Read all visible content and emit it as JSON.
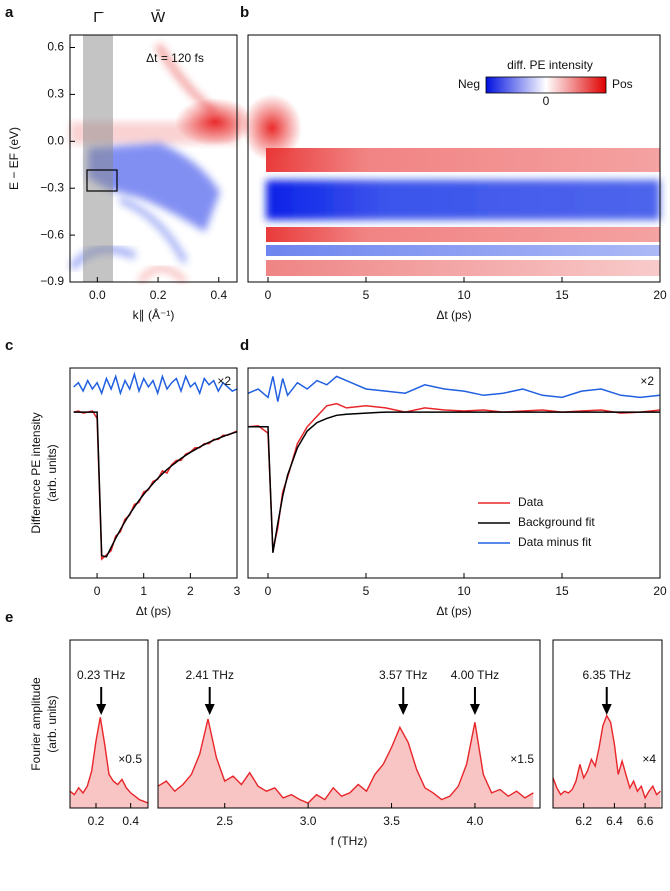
{
  "chart_data": [
    {
      "type": "heatmap",
      "panel": "a",
      "xlabel": "k∥ (Å⁻¹)",
      "ylabel": "E − EF (eV)",
      "xlim": [
        -0.09,
        0.46
      ],
      "ylim": [
        -0.9,
        0.68
      ],
      "xticks": [
        {
          "value": 0,
          "label": "0.0"
        },
        0.2,
        0.4
      ],
      "yticks": [
        {
          "value": -0.9,
          "label": "−0.9"
        },
        {
          "value": -0.6,
          "label": "−0.6"
        },
        {
          "value": -0.3,
          "label": "−0.3"
        },
        {
          "value": 0,
          "label": "0.0"
        },
        0.3,
        0.6
      ],
      "markers": [
        {
          "x": 0,
          "label": "Γ̄"
        },
        {
          "x": 0.2,
          "label": "W̄"
        }
      ],
      "annotation": "Δt = 120 fs"
    },
    {
      "type": "heatmap",
      "panel": "b",
      "xlabel": "Δt (ps)",
      "xlim": [
        -1.02,
        20
      ],
      "xticks": [
        0,
        5,
        10,
        15,
        20
      ],
      "colorbar": {
        "title": "diff. PE intensity",
        "low": "Neg",
        "high": "Pos",
        "center": 0
      }
    },
    {
      "type": "line",
      "panel": "c",
      "xlabel": "Δt (ps)",
      "ylabel": [
        "Difference PE intensity",
        "(arb. units)"
      ],
      "xlim": [
        -0.58,
        3
      ],
      "ylim": [
        0,
        10
      ],
      "xticks": [
        0,
        1,
        2,
        3
      ],
      "scale_label": "×2",
      "x": [
        -0.5,
        -0.4,
        -0.3,
        -0.2,
        -0.1,
        0,
        0.1,
        0.2,
        0.3,
        0.4,
        0.5,
        0.6,
        0.7,
        0.8,
        0.9,
        1.0,
        1.1,
        1.2,
        1.3,
        1.4,
        1.5,
        1.6,
        1.7,
        1.8,
        1.9,
        2.0,
        2.1,
        2.2,
        2.3,
        2.4,
        2.5,
        2.6,
        2.7,
        2.8,
        2.9,
        3.0
      ],
      "series": [
        {
          "color": "#e8262a",
          "values": [
            7.9,
            7.95,
            7.85,
            7.9,
            7.95,
            7.6,
            0.9,
            1.1,
            1.3,
            2.0,
            2.2,
            2.8,
            3.0,
            3.5,
            3.6,
            4.1,
            4.2,
            4.6,
            4.7,
            5.1,
            5.0,
            5.4,
            5.6,
            5.6,
            5.9,
            6.0,
            6.2,
            6.2,
            6.4,
            6.4,
            6.6,
            6.6,
            6.8,
            6.8,
            6.9,
            7.0
          ]
        },
        {
          "color": "#000000",
          "values": [
            7.9,
            7.9,
            7.9,
            7.9,
            7.9,
            7.9,
            1.06,
            1.01,
            1.45,
            1.89,
            2.3,
            2.69,
            3.05,
            3.38,
            3.69,
            3.98,
            4.25,
            4.5,
            4.74,
            4.96,
            5.16,
            5.35,
            5.52,
            5.69,
            5.84,
            5.98,
            6.11,
            6.24,
            6.35,
            6.46,
            6.56,
            6.65,
            6.74,
            6.82,
            6.89,
            6.96
          ]
        },
        {
          "color": "#2060e0",
          "values": [
            9.1,
            9.3,
            8.9,
            9.4,
            9.0,
            9.3,
            8.8,
            9.5,
            9.0,
            9.6,
            8.8,
            9.4,
            9.0,
            9.7,
            8.9,
            9.5,
            9.1,
            9.4,
            8.8,
            9.6,
            9.0,
            9.3,
            9.5,
            8.9,
            9.6,
            9.1,
            9.3,
            8.8,
            9.5,
            9.2,
            9.4,
            8.9,
            9.3,
            9.1,
            8.9,
            9.0
          ]
        }
      ]
    },
    {
      "type": "line",
      "panel": "d",
      "xlabel": "Δt (ps)",
      "xlim": [
        -1.02,
        20
      ],
      "ylim": [
        0,
        10
      ],
      "xticks": [
        0,
        5,
        10,
        15,
        20
      ],
      "scale_label": "×2",
      "legend": "lower right",
      "x": [
        -1,
        -0.5,
        0,
        0.25,
        0.5,
        0.75,
        1,
        1.5,
        2,
        2.5,
        3,
        3.5,
        4,
        5,
        6,
        7,
        8,
        9,
        10,
        11,
        12,
        13,
        14,
        15,
        16,
        17,
        18,
        19,
        20
      ],
      "series": [
        {
          "name": "Data",
          "color": "#e8262a",
          "values": [
            7.2,
            7.25,
            6.9,
            1.3,
            2.4,
            4.1,
            4.8,
            6.4,
            7.2,
            7.7,
            8.2,
            8.3,
            8.1,
            8.2,
            8.1,
            7.9,
            8.1,
            8.0,
            7.95,
            8.0,
            7.9,
            7.95,
            8.0,
            7.9,
            7.95,
            8.0,
            7.85,
            7.9,
            8.0
          ]
        },
        {
          "name": "Background fit",
          "color": "#000000",
          "values": [
            7.2,
            7.2,
            7.2,
            1.2,
            2.6,
            3.9,
            4.9,
            6.2,
            7.0,
            7.4,
            7.6,
            7.75,
            7.8,
            7.85,
            7.9,
            7.9,
            7.9,
            7.9,
            7.9,
            7.9,
            7.9,
            7.9,
            7.9,
            7.9,
            7.9,
            7.9,
            7.9,
            7.9,
            7.9
          ]
        },
        {
          "name": "Data minus fit",
          "color": "#2060e0",
          "values": [
            8.8,
            9.0,
            8.6,
            9.6,
            8.4,
            9.5,
            8.7,
            9.3,
            9.0,
            9.4,
            9.2,
            9.6,
            9.4,
            9.0,
            8.9,
            8.8,
            9.2,
            9.0,
            8.9,
            8.7,
            8.8,
            9.0,
            8.7,
            8.6,
            8.9,
            9.0,
            8.7,
            8.6,
            8.7
          ]
        }
      ]
    },
    {
      "type": "area",
      "panel": "e",
      "ylabel": [
        "Fourier amplitude",
        "(arb. units)"
      ],
      "xlim": [
        0.05,
        0.5
      ],
      "ylim": [
        0,
        10
      ],
      "xticks": [
        0.2,
        0.4
      ],
      "scale_label": "×0.5",
      "color": "#e8262a",
      "fill": "#f8c4c4",
      "peaks": [
        {
          "x": 0.23,
          "label": "0.23 THz"
        }
      ],
      "x": [
        0.05,
        0.075,
        0.1,
        0.125,
        0.15,
        0.175,
        0.2,
        0.225,
        0.25,
        0.275,
        0.3,
        0.325,
        0.35,
        0.375,
        0.4,
        0.425,
        0.45,
        0.475,
        0.5
      ],
      "values": [
        1.0,
        0.8,
        1.2,
        0.9,
        1.3,
        2.2,
        4.0,
        5.4,
        3.8,
        2.0,
        1.6,
        1.4,
        1.7,
        1.2,
        0.9,
        0.7,
        0.5,
        0.4,
        0.3
      ]
    },
    {
      "type": "area",
      "xlabel": "f (THz)",
      "xlim": [
        2.1,
        4.39
      ],
      "ylim": [
        0,
        10
      ],
      "xticks": [
        2.5,
        {
          "value": 3,
          "label": "3.0"
        },
        3.5,
        {
          "value": 4,
          "label": "4.0"
        }
      ],
      "scale_label": "×1.5",
      "color": "#e8262a",
      "fill": "#f8c4c4",
      "peaks": [
        {
          "x": 2.41,
          "label": "2.41 THz"
        },
        {
          "x": 3.57,
          "label": "3.57 THz"
        },
        {
          "x": 4.0,
          "label": "4.00 THz"
        }
      ],
      "x": [
        2.1,
        2.15,
        2.2,
        2.25,
        2.3,
        2.35,
        2.4,
        2.45,
        2.5,
        2.55,
        2.6,
        2.65,
        2.7,
        2.75,
        2.8,
        2.85,
        2.9,
        2.95,
        3.0,
        3.05,
        3.1,
        3.15,
        3.2,
        3.25,
        3.3,
        3.35,
        3.4,
        3.45,
        3.5,
        3.55,
        3.6,
        3.65,
        3.7,
        3.75,
        3.8,
        3.85,
        3.9,
        3.95,
        4.0,
        4.05,
        4.1,
        4.15,
        4.2,
        4.25,
        4.3,
        4.35
      ],
      "values": [
        1.3,
        1.6,
        1.0,
        1.4,
        2.0,
        3.2,
        5.3,
        3.0,
        1.6,
        1.9,
        1.4,
        2.1,
        1.3,
        1.0,
        1.2,
        0.6,
        0.8,
        0.5,
        0.3,
        0.8,
        0.5,
        1.2,
        0.7,
        0.9,
        1.4,
        1.0,
        2.0,
        2.6,
        3.6,
        4.8,
        3.9,
        2.3,
        1.2,
        0.9,
        0.5,
        0.7,
        1.3,
        2.6,
        5.1,
        2.0,
        0.9,
        1.1,
        0.7,
        1.0,
        0.6,
        0.9
      ]
    },
    {
      "type": "area",
      "xlim": [
        6.0,
        6.71
      ],
      "ylim": [
        0,
        10
      ],
      "xticks": [
        6.2,
        6.4,
        6.6
      ],
      "scale_label": "×4",
      "color": "#e8262a",
      "fill": "#f8c4c4",
      "peaks": [
        {
          "x": 6.35,
          "label": "6.35 THz"
        }
      ],
      "x": [
        6.0,
        6.025,
        6.05,
        6.075,
        6.1,
        6.125,
        6.15,
        6.175,
        6.2,
        6.225,
        6.25,
        6.275,
        6.3,
        6.325,
        6.35,
        6.375,
        6.4,
        6.425,
        6.45,
        6.475,
        6.5,
        6.525,
        6.55,
        6.575,
        6.6,
        6.625,
        6.65,
        6.675,
        6.7
      ],
      "values": [
        1.8,
        1.2,
        0.8,
        1.0,
        0.9,
        1.1,
        1.6,
        2.6,
        1.8,
        2.2,
        2.9,
        2.5,
        3.6,
        4.9,
        5.5,
        5.1,
        3.8,
        2.0,
        2.8,
        2.0,
        1.2,
        1.6,
        1.0,
        1.3,
        0.6,
        1.0,
        1.3,
        0.8,
        1.0
      ]
    }
  ]
}
